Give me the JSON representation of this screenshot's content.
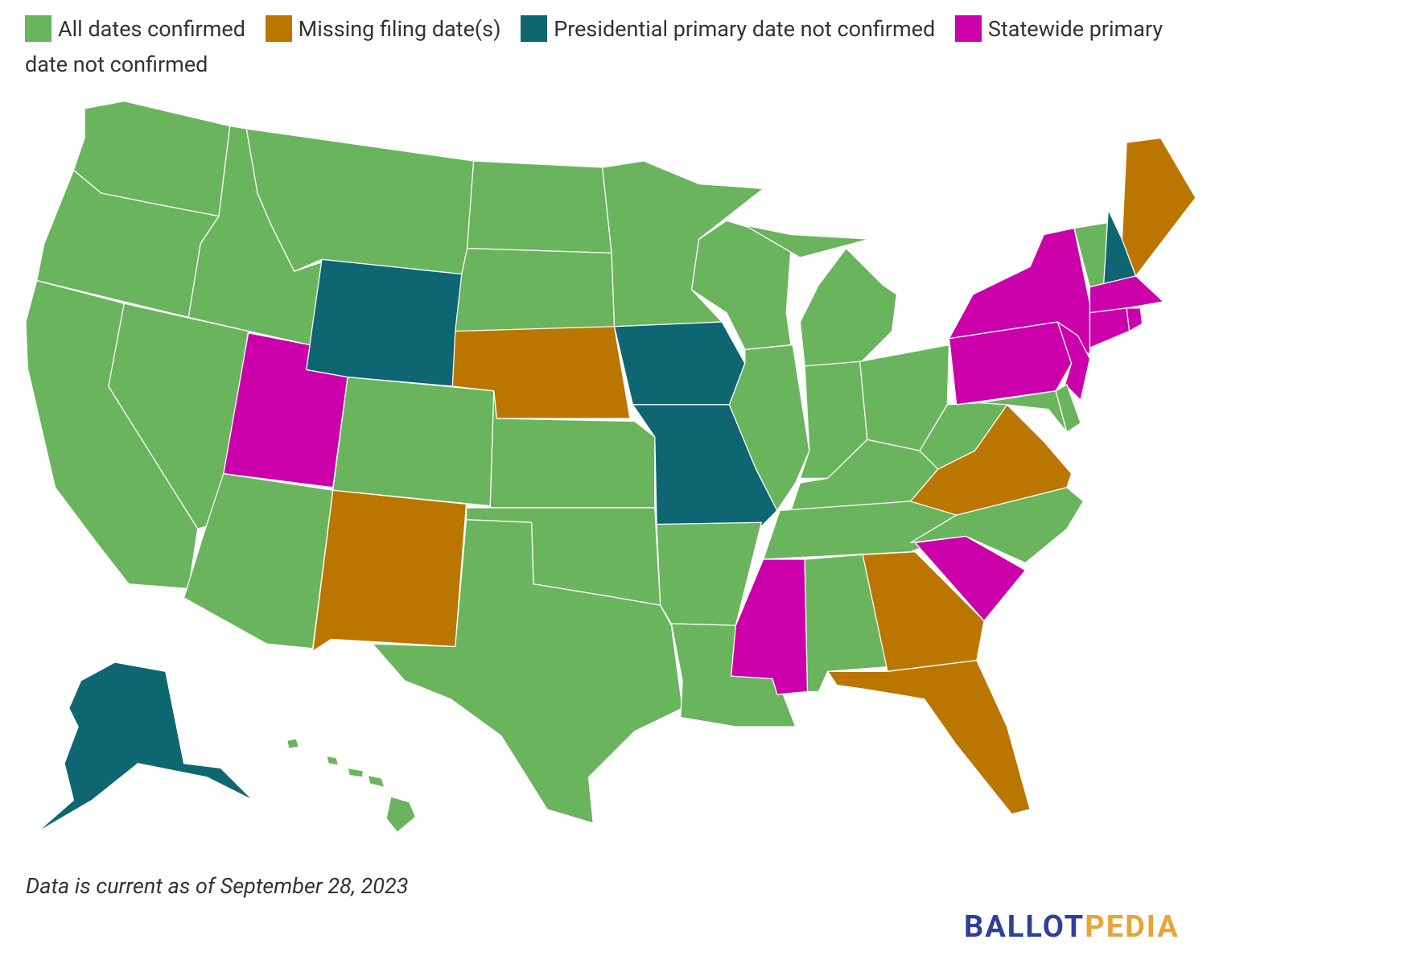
{
  "legend": {
    "items": [
      {
        "label": "All dates confirmed",
        "color": "#6ab45e"
      },
      {
        "label": "Missing filing date(s)",
        "color": "#bb7600"
      },
      {
        "label": "Presidential primary date not confirmed",
        "color": "#0f6673"
      },
      {
        "label": "Statewide primary date not confirmed",
        "color": "#cc00aa"
      }
    ]
  },
  "footnote": "Data is current as of September 28, 2023",
  "logo": {
    "first": "BALLOT",
    "second": "PEDIA"
  }
}
